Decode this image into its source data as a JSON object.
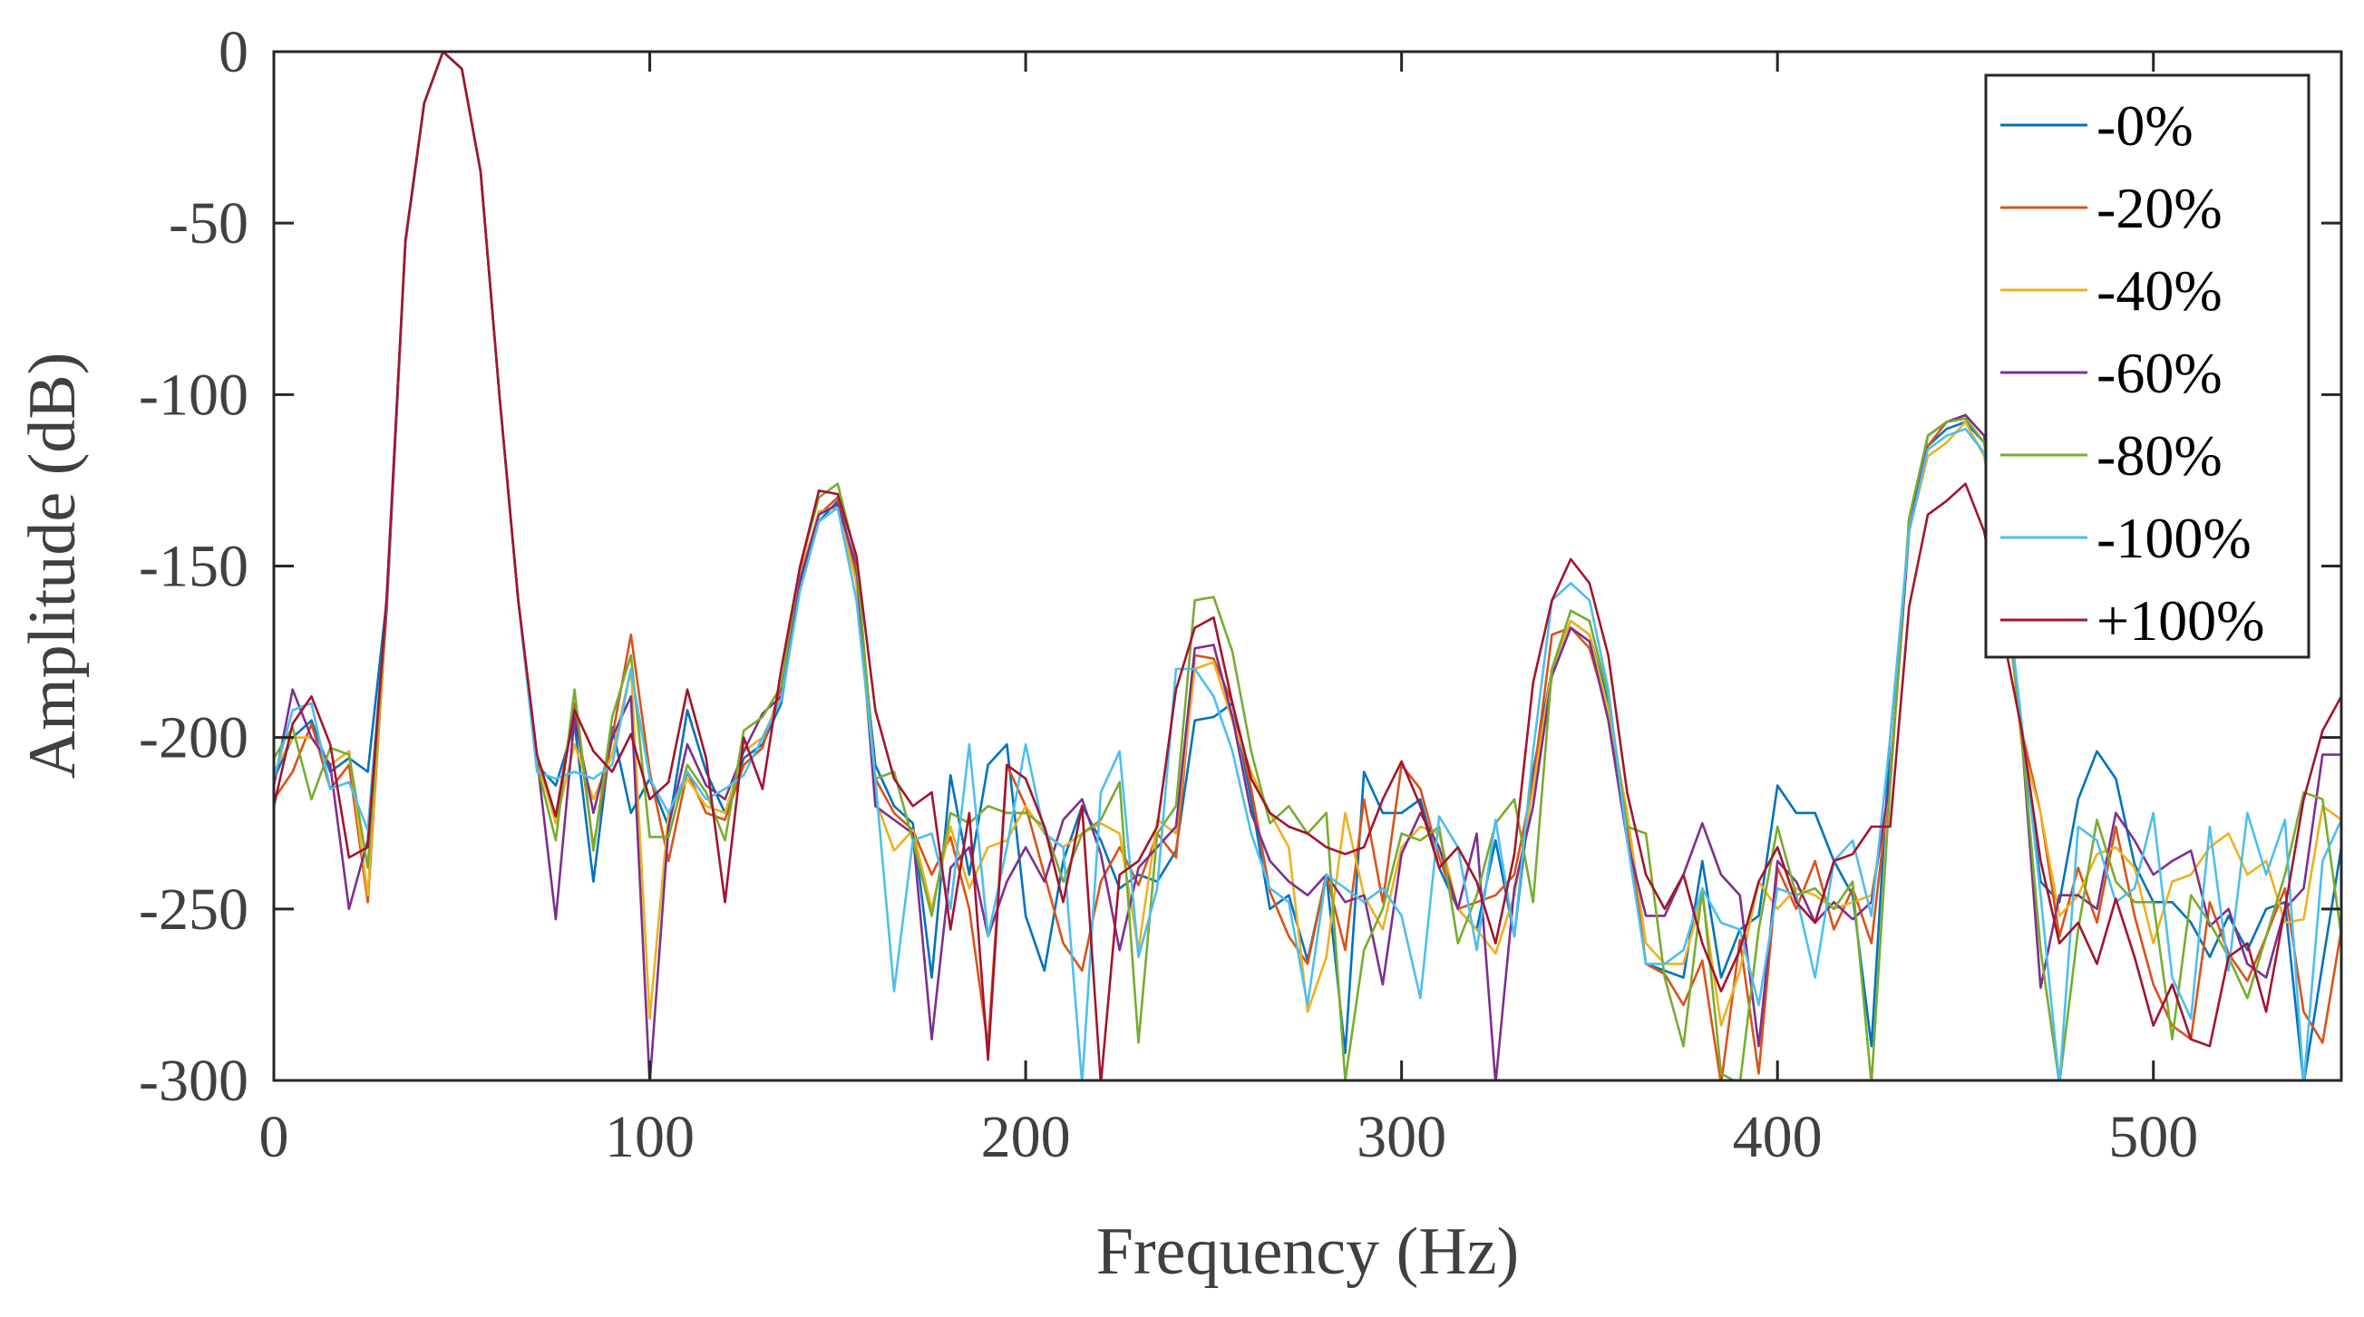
{
  "chart_data": {
    "type": "line",
    "title": "",
    "xlabel": "Frequency (Hz)",
    "ylabel": "Amplitude (dB)",
    "xlim": [
      0,
      550
    ],
    "ylim": [
      -300,
      0
    ],
    "xticks": [
      0,
      100,
      200,
      300,
      400,
      500
    ],
    "yticks": [
      0,
      -50,
      -100,
      -150,
      -200,
      -250,
      -300
    ],
    "xtick_labels": [
      "0",
      "100",
      "200",
      "300",
      "400",
      "500"
    ],
    "ytick_labels": [
      "0",
      "-50",
      "-100",
      "-150",
      "-200",
      "-250",
      "-300"
    ],
    "legend_position": "top-right",
    "grid": false,
    "x": [
      0,
      5,
      10,
      15,
      20,
      25,
      30,
      35,
      40,
      45,
      50,
      55,
      60,
      65,
      70,
      75,
      80,
      85,
      90,
      95,
      100,
      105,
      110,
      115,
      120,
      125,
      130,
      135,
      140,
      145,
      150,
      155,
      160,
      165,
      170,
      175,
      180,
      185,
      190,
      195,
      200,
      205,
      210,
      215,
      220,
      225,
      230,
      235,
      240,
      245,
      250,
      255,
      260,
      265,
      270,
      275,
      280,
      285,
      290,
      295,
      300,
      305,
      310,
      315,
      320,
      325,
      330,
      335,
      340,
      345,
      350,
      355,
      360,
      365,
      370,
      375,
      380,
      385,
      390,
      395,
      400,
      405,
      410,
      415,
      420,
      425,
      430,
      435,
      440,
      445,
      450,
      455,
      460,
      465,
      470,
      475,
      480,
      485,
      490,
      495,
      500,
      505,
      510,
      515,
      520,
      525,
      530,
      535,
      540,
      545,
      550
    ],
    "series": [
      {
        "name": "-0%",
        "color": "#0072BD",
        "values": [
          -212,
          -200,
          -195,
          -210,
          -206,
          -210,
          -160,
          -55,
          -15,
          0,
          -5,
          -35,
          -100,
          -160,
          -208,
          -214,
          -196,
          -242,
          -197,
          -222,
          -212,
          -226,
          -192,
          -210,
          -222,
          -206,
          -202,
          -190,
          -155,
          -137,
          -131,
          -155,
          -208,
          -220,
          -225,
          -270,
          -211,
          -240,
          -208,
          -202,
          -252,
          -268,
          -236,
          -220,
          -230,
          -244,
          -240,
          -242,
          -233,
          -195,
          -194,
          -190,
          -218,
          -250,
          -246,
          -265,
          -240,
          -292,
          -210,
          -222,
          -222,
          -218,
          -238,
          -250,
          -256,
          -230,
          -258,
          -210,
          -180,
          -166,
          -170,
          -190,
          -225,
          -266,
          -268,
          -270,
          -236,
          -270,
          -256,
          -252,
          -214,
          -222,
          -222,
          -236,
          -246,
          -290,
          -200,
          -140,
          -115,
          -110,
          -108,
          -114,
          -150,
          -200,
          -242,
          -248,
          -218,
          -204,
          -212,
          -237,
          -248,
          -248,
          -254,
          -264,
          -252,
          -262,
          -250,
          -248,
          -301,
          -266,
          -232
        ]
      },
      {
        "name": "-20%",
        "color": "#D95319",
        "values": [
          -218,
          -210,
          -196,
          -215,
          -208,
          -248,
          -162,
          -56,
          -15,
          0,
          -5,
          -35,
          -100,
          -160,
          -205,
          -223,
          -190,
          -232,
          -200,
          -170,
          -210,
          -236,
          -210,
          -222,
          -224,
          -208,
          -203,
          -185,
          -152,
          -135,
          -130,
          -152,
          -212,
          -222,
          -227,
          -240,
          -229,
          -250,
          -290,
          -208,
          -220,
          -240,
          -260,
          -268,
          -242,
          -232,
          -243,
          -228,
          -235,
          -176,
          -177,
          -190,
          -215,
          -245,
          -258,
          -266,
          -240,
          -262,
          -218,
          -248,
          -208,
          -215,
          -235,
          -250,
          -248,
          -246,
          -240,
          -213,
          -170,
          -168,
          -174,
          -193,
          -224,
          -266,
          -269,
          -278,
          -265,
          -301,
          -259,
          -298,
          -238,
          -250,
          -236,
          -256,
          -244,
          -260,
          -212,
          -140,
          -115,
          -108,
          -106,
          -112,
          -150,
          -198,
          -222,
          -258,
          -238,
          -254,
          -226,
          -252,
          -272,
          -284,
          -288,
          -248,
          -263,
          -271,
          -258,
          -244,
          -280,
          -289,
          -256
        ]
      },
      {
        "name": "-40%",
        "color": "#EDB120",
        "values": [
          -210,
          -200,
          -200,
          -208,
          -204,
          -246,
          -160,
          -55,
          -15,
          0,
          -5,
          -35,
          -100,
          -160,
          -206,
          -225,
          -202,
          -218,
          -205,
          -180,
          -282,
          -222,
          -212,
          -220,
          -222,
          -204,
          -200,
          -188,
          -153,
          -134,
          -133,
          -155,
          -218,
          -233,
          -227,
          -250,
          -226,
          -244,
          -232,
          -230,
          -220,
          -228,
          -232,
          -228,
          -225,
          -228,
          -262,
          -224,
          -228,
          -180,
          -178,
          -195,
          -210,
          -222,
          -232,
          -280,
          -264,
          -222,
          -246,
          -256,
          -232,
          -226,
          -228,
          -250,
          -256,
          -263,
          -246,
          -215,
          -180,
          -166,
          -170,
          -192,
          -222,
          -260,
          -266,
          -266,
          -246,
          -284,
          -268,
          -242,
          -250,
          -244,
          -246,
          -250,
          -248,
          -246,
          -214,
          -140,
          -118,
          -114,
          -108,
          -118,
          -150,
          -202,
          -222,
          -252,
          -246,
          -234,
          -232,
          -238,
          -260,
          -242,
          -240,
          -232,
          -228,
          -240,
          -236,
          -254,
          -253,
          -220,
          -224
        ]
      },
      {
        "name": "-60%",
        "color": "#7E2F8E",
        "values": [
          -214,
          -186,
          -200,
          -208,
          -250,
          -230,
          -163,
          -56,
          -15,
          0,
          -5,
          -35,
          -100,
          -160,
          -206,
          -253,
          -194,
          -222,
          -200,
          -188,
          -301,
          -226,
          -202,
          -214,
          -218,
          -204,
          -193,
          -188,
          -154,
          -135,
          -132,
          -150,
          -220,
          -224,
          -228,
          -288,
          -238,
          -232,
          -258,
          -242,
          -232,
          -242,
          -224,
          -218,
          -234,
          -262,
          -238,
          -232,
          -226,
          -174,
          -173,
          -194,
          -222,
          -236,
          -242,
          -246,
          -240,
          -248,
          -246,
          -272,
          -234,
          -222,
          -232,
          -250,
          -228,
          -301,
          -244,
          -220,
          -182,
          -168,
          -172,
          -195,
          -230,
          -252,
          -252,
          -240,
          -225,
          -240,
          -246,
          -290,
          -236,
          -242,
          -254,
          -248,
          -253,
          -248,
          -212,
          -140,
          -112,
          -108,
          -106,
          -112,
          -150,
          -200,
          -273,
          -246,
          -246,
          -250,
          -222,
          -230,
          -240,
          -236,
          -233,
          -255,
          -250,
          -266,
          -270,
          -250,
          -244,
          -205,
          -205
        ]
      },
      {
        "name": "-80%",
        "color": "#77AC30",
        "values": [
          -206,
          -197,
          -218,
          -203,
          -205,
          -238,
          -160,
          -56,
          -15,
          0,
          -5,
          -35,
          -100,
          -160,
          -208,
          -230,
          -186,
          -233,
          -194,
          -176,
          -229,
          -229,
          -208,
          -216,
          -230,
          -198,
          -194,
          -185,
          -150,
          -130,
          -126,
          -148,
          -212,
          -210,
          -230,
          -252,
          -222,
          -225,
          -220,
          -222,
          -222,
          -226,
          -242,
          -228,
          -224,
          -213,
          -289,
          -228,
          -220,
          -160,
          -159,
          -175,
          -204,
          -225,
          -220,
          -228,
          -222,
          -300,
          -262,
          -250,
          -228,
          -230,
          -226,
          -260,
          -246,
          -225,
          -218,
          -248,
          -180,
          -163,
          -166,
          -188,
          -226,
          -228,
          -270,
          -290,
          -244,
          -298,
          -301,
          -256,
          -226,
          -246,
          -244,
          -250,
          -242,
          -301,
          -214,
          -136,
          -112,
          -108,
          -107,
          -114,
          -150,
          -200,
          -262,
          -301,
          -256,
          -224,
          -242,
          -248,
          -248,
          -288,
          -246,
          -254,
          -264,
          -276,
          -258,
          -240,
          -216,
          -218,
          -258
        ]
      },
      {
        "name": "-100%",
        "color": "#4DBEEE",
        "values": [
          -212,
          -192,
          -190,
          -215,
          -213,
          -227,
          -160,
          -56,
          -15,
          0,
          -5,
          -35,
          -100,
          -160,
          -210,
          -212,
          -210,
          -212,
          -208,
          -180,
          -212,
          -222,
          -210,
          -218,
          -215,
          -211,
          -200,
          -189,
          -157,
          -137,
          -133,
          -160,
          -212,
          -274,
          -230,
          -228,
          -250,
          -202,
          -258,
          -232,
          -202,
          -228,
          -232,
          -301,
          -216,
          -204,
          -264,
          -244,
          -180,
          -180,
          -188,
          -204,
          -228,
          -244,
          -248,
          -278,
          -240,
          -244,
          -248,
          -244,
          -252,
          -276,
          -223,
          -232,
          -262,
          -224,
          -258,
          -204,
          -160,
          -155,
          -160,
          -186,
          -230,
          -266,
          -266,
          -262,
          -244,
          -254,
          -256,
          -278,
          -244,
          -246,
          -270,
          -236,
          -230,
          -252,
          -200,
          -140,
          -116,
          -112,
          -110,
          -117,
          -148,
          -196,
          -246,
          -301,
          -226,
          -230,
          -248,
          -244,
          -222,
          -270,
          -282,
          -226,
          -268,
          -222,
          -240,
          -224,
          -301,
          -236,
          -224
        ]
      },
      {
        "name": "+100%",
        "color": "#A2142F",
        "values": [
          -220,
          -196,
          -188,
          -202,
          -235,
          -232,
          -159,
          -55,
          -15,
          0,
          -5,
          -35,
          -100,
          -160,
          -205,
          -223,
          -192,
          -204,
          -210,
          -199,
          -218,
          -213,
          -186,
          -206,
          -248,
          -200,
          -215,
          -180,
          -150,
          -128,
          -129,
          -147,
          -192,
          -212,
          -220,
          -216,
          -256,
          -222,
          -294,
          -208,
          -212,
          -226,
          -248,
          -220,
          -301,
          -240,
          -236,
          -226,
          -186,
          -168,
          -165,
          -190,
          -212,
          -222,
          -226,
          -228,
          -232,
          -234,
          -232,
          -218,
          -207,
          -220,
          -238,
          -232,
          -242,
          -260,
          -234,
          -184,
          -160,
          -148,
          -155,
          -176,
          -216,
          -240,
          -250,
          -240,
          -260,
          -274,
          -262,
          -242,
          -232,
          -248,
          -254,
          -236,
          -234,
          -226,
          -226,
          -162,
          -135,
          -131,
          -126,
          -140,
          -170,
          -198,
          -236,
          -260,
          -254,
          -266,
          -247,
          -264,
          -284,
          -272,
          -288,
          -290,
          -264,
          -260,
          -280,
          -250,
          -218,
          -198,
          -188
        ]
      }
    ]
  }
}
